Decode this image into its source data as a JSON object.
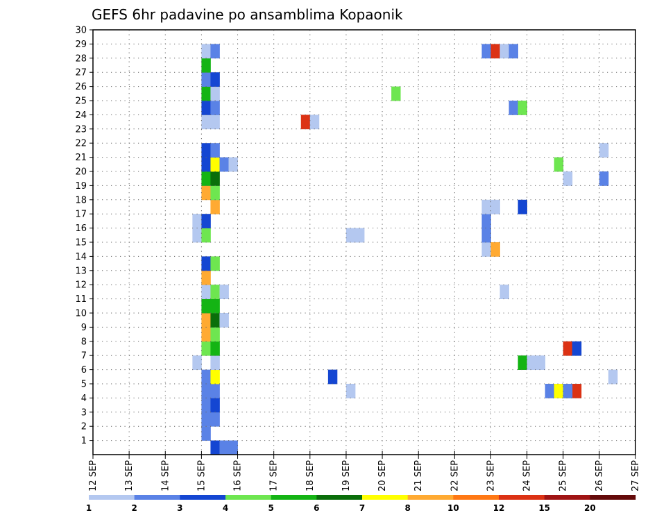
{
  "chart_data": {
    "type": "heatmap",
    "title": "GEFS 6hr padavine po ansamblima Kopaonik",
    "xlabel": "",
    "ylabel": "",
    "x_range": [
      "12 SEP",
      "27 SEP"
    ],
    "x_step_hours": 6,
    "x_tick_labels": [
      "12 SEP",
      "13 SEP",
      "14 SEP",
      "15 SEP",
      "16 SEP",
      "17 SEP",
      "18 SEP",
      "19 SEP",
      "20 SEP",
      "21 SEP",
      "22 SEP",
      "23 SEP",
      "24 SEP",
      "25 SEP",
      "26 SEP",
      "27 SEP"
    ],
    "y_range": [
      0,
      30
    ],
    "y_tick_labels": [
      "1",
      "2",
      "3",
      "4",
      "5",
      "6",
      "7",
      "8",
      "9",
      "10",
      "11",
      "12",
      "13",
      "14",
      "15",
      "16",
      "17",
      "18",
      "19",
      "20",
      "21",
      "22",
      "23",
      "24",
      "25",
      "26",
      "27",
      "28",
      "29",
      "30"
    ],
    "grid": "dotted",
    "colorbar": {
      "placement": "bottom",
      "colors": [
        "#b4c8f0",
        "#5a82e6",
        "#1446d2",
        "#6ee650",
        "#14b414",
        "#0a6e0a",
        "#ffff00",
        "#ffaa32",
        "#ff7814",
        "#dc3214",
        "#a01414",
        "#640a0a"
      ],
      "labels": [
        "1",
        "2",
        "3",
        "4",
        "5",
        "6",
        "7",
        "8",
        "10",
        "12",
        "15",
        "20"
      ]
    },
    "cells_format": "[member, day, step_6h, color_level_index]",
    "cells": [
      [
        1,
        15,
        0,
        1
      ],
      [
        0,
        15,
        1,
        2
      ],
      [
        0,
        15,
        2,
        1
      ],
      [
        0,
        15,
        3,
        1
      ],
      [
        2,
        14,
        4,
        0
      ],
      [
        2,
        15,
        0,
        1
      ],
      [
        2,
        15,
        1,
        1
      ],
      [
        3,
        15,
        0,
        1
      ],
      [
        3,
        15,
        1,
        2
      ],
      [
        4,
        15,
        0,
        1
      ],
      [
        4,
        15,
        1,
        1
      ],
      [
        4,
        19,
        0,
        0
      ],
      [
        4,
        24,
        2,
        1
      ],
      [
        4,
        24,
        3,
        6
      ],
      [
        4,
        24,
        4,
        3
      ],
      [
        4,
        24,
        5,
        9
      ],
      [
        4,
        25,
        0,
        1
      ],
      [
        5,
        15,
        0,
        1
      ],
      [
        5,
        15,
        1,
        6
      ],
      [
        5,
        18,
        2,
        2
      ],
      [
        5,
        26,
        1,
        0
      ],
      [
        6,
        14,
        3,
        0
      ],
      [
        6,
        15,
        1,
        0
      ],
      [
        6,
        23,
        3,
        4
      ],
      [
        6,
        24,
        0,
        0
      ],
      [
        6,
        24,
        1,
        0
      ],
      [
        7,
        15,
        0,
        3
      ],
      [
        7,
        15,
        1,
        4
      ],
      [
        7,
        25,
        0,
        9
      ],
      [
        7,
        25,
        1,
        2
      ],
      [
        8,
        15,
        0,
        7
      ],
      [
        8,
        15,
        1,
        3
      ],
      [
        9,
        15,
        0,
        7
      ],
      [
        9,
        15,
        1,
        5
      ],
      [
        9,
        15,
        2,
        0
      ],
      [
        10,
        15,
        0,
        4
      ],
      [
        10,
        15,
        1,
        4
      ],
      [
        11,
        15,
        0,
        0
      ],
      [
        11,
        15,
        1,
        3
      ],
      [
        11,
        15,
        2,
        0
      ],
      [
        11,
        23,
        1,
        0
      ],
      [
        12,
        15,
        0,
        7
      ],
      [
        13,
        15,
        0,
        2
      ],
      [
        13,
        15,
        1,
        3
      ],
      [
        14,
        22,
        3,
        0
      ],
      [
        14,
        23,
        0,
        7
      ],
      [
        15,
        14,
        3,
        0
      ],
      [
        15,
        15,
        0,
        3
      ],
      [
        15,
        19,
        0,
        0
      ],
      [
        15,
        19,
        1,
        0
      ],
      [
        15,
        22,
        3,
        1
      ],
      [
        16,
        14,
        3,
        0
      ],
      [
        16,
        15,
        0,
        2
      ],
      [
        16,
        22,
        3,
        1
      ],
      [
        17,
        15,
        1,
        7
      ],
      [
        17,
        22,
        3,
        0
      ],
      [
        17,
        23,
        0,
        0
      ],
      [
        17,
        23,
        3,
        2
      ],
      [
        18,
        15,
        0,
        7
      ],
      [
        18,
        15,
        1,
        3
      ],
      [
        19,
        15,
        0,
        4
      ],
      [
        19,
        15,
        1,
        5
      ],
      [
        19,
        25,
        0,
        0
      ],
      [
        19,
        26,
        0,
        1
      ],
      [
        20,
        15,
        0,
        2
      ],
      [
        20,
        15,
        1,
        6
      ],
      [
        20,
        15,
        2,
        1
      ],
      [
        20,
        15,
        3,
        0
      ],
      [
        20,
        24,
        3,
        3
      ],
      [
        21,
        15,
        0,
        2
      ],
      [
        21,
        15,
        1,
        1
      ],
      [
        21,
        26,
        0,
        0
      ],
      [
        23,
        15,
        0,
        0
      ],
      [
        23,
        15,
        1,
        0
      ],
      [
        23,
        17,
        3,
        9
      ],
      [
        23,
        18,
        0,
        0
      ],
      [
        24,
        15,
        0,
        2
      ],
      [
        24,
        15,
        1,
        1
      ],
      [
        24,
        23,
        2,
        1
      ],
      [
        24,
        23,
        3,
        3
      ],
      [
        25,
        15,
        0,
        4
      ],
      [
        25,
        15,
        1,
        0
      ],
      [
        25,
        20,
        1,
        3
      ],
      [
        26,
        15,
        0,
        1
      ],
      [
        26,
        15,
        1,
        2
      ],
      [
        27,
        15,
        0,
        4
      ],
      [
        28,
        15,
        0,
        0
      ],
      [
        28,
        15,
        1,
        1
      ],
      [
        28,
        22,
        3,
        1
      ],
      [
        28,
        23,
        0,
        9
      ],
      [
        28,
        23,
        1,
        0
      ],
      [
        28,
        23,
        2,
        1
      ]
    ]
  }
}
